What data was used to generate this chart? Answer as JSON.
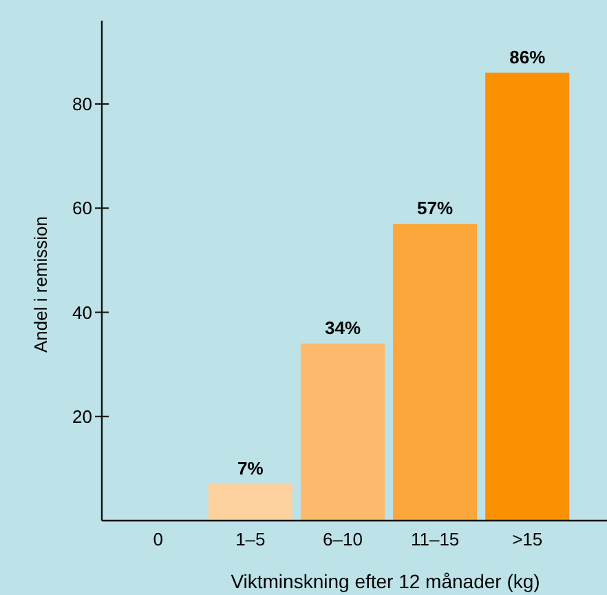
{
  "chart_data": {
    "type": "bar",
    "xlabel": "Viktminskning efter 12 månader (kg)",
    "ylabel": "Andel i remission",
    "categories": [
      "0",
      "1–5",
      "6–10",
      "11–15",
      ">15"
    ],
    "values": [
      0,
      7,
      34,
      57,
      86
    ],
    "colors": [
      "#fed29e",
      "#fed29e",
      "#fdba6c",
      "#fca73b",
      "#f99100"
    ],
    "value_labels": [
      null,
      "7%",
      "34%",
      "57%",
      "86%"
    ],
    "ylim": [
      0,
      96
    ],
    "yticks": [
      20,
      40,
      60,
      80
    ],
    "grid": false
  }
}
